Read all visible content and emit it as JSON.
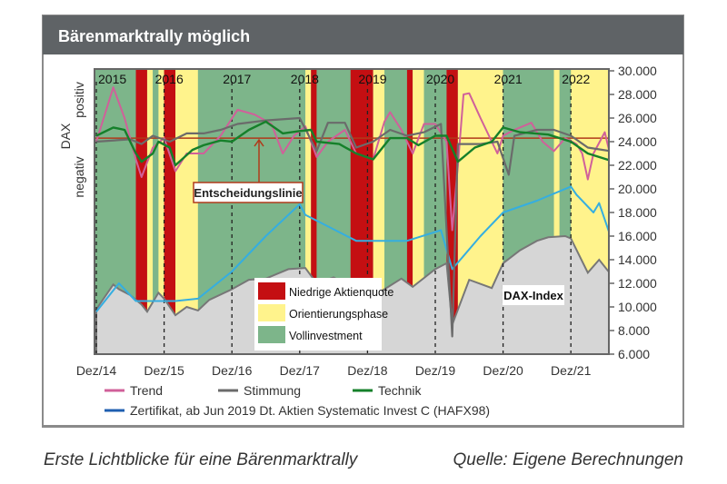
{
  "header": {
    "title": "Bärenmarktrally möglich"
  },
  "caption": {
    "left": "Erste Lichtblicke für eine Bärenmarktrally",
    "right": "Quelle: Eigene Berechnungen"
  },
  "chart_data": {
    "type": "line",
    "title": "Bärenmarktrally möglich",
    "ylabel": [
      "DAX",
      "negativ",
      "positiv"
    ],
    "ylim": [
      6000,
      30000
    ],
    "y_ticks": [
      "30.000",
      "28.000",
      "26.000",
      "24.000",
      "22.000",
      "20.000",
      "18.000",
      "16.000",
      "14.000",
      "12.000",
      "10.000",
      "8.000",
      "6.000"
    ],
    "x_ticks": [
      "Dez/14",
      "Dez/15",
      "Dez/16",
      "Dez/17",
      "Dez/18",
      "Dez/19",
      "Dez/20",
      "Dez/21"
    ],
    "year_labels": [
      "2015",
      "2016",
      "2017",
      "2018",
      "2019",
      "2020",
      "2021",
      "2022"
    ],
    "decision_line": {
      "label": "Entscheidungslinie",
      "value": 24300
    },
    "dax_label": "DAX-Index",
    "colors": {
      "red": "#c40f12",
      "yellow": "#fff38c",
      "green": "#7db58a",
      "dax_fill": "#d6d6d6",
      "trend": "#d0609a",
      "stimmung": "#6b6b6b",
      "technik": "#15802a",
      "zertifikat": "#35aee0",
      "zertifikat_legend": "#1f5fb0",
      "decision": "#b03a1a",
      "header": "#5f6366"
    },
    "regime_legend": [
      {
        "key": "red",
        "label": "Niedrige Aktienquote"
      },
      {
        "key": "yellow",
        "label": "Orientierungsphase"
      },
      {
        "key": "green",
        "label": "Vollinvestment"
      }
    ],
    "regimes": [
      [
        "2014-12",
        "2015-07",
        "green"
      ],
      [
        "2015-07",
        "2015-09",
        "red"
      ],
      [
        "2015-09",
        "2015-10",
        "yellow"
      ],
      [
        "2015-10",
        "2015-11",
        "green"
      ],
      [
        "2015-11",
        "2015-12",
        "yellow"
      ],
      [
        "2015-12",
        "2016-02",
        "red"
      ],
      [
        "2016-02",
        "2016-06",
        "yellow"
      ],
      [
        "2016-06",
        "2018-01",
        "green"
      ],
      [
        "2018-01",
        "2018-02",
        "yellow"
      ],
      [
        "2018-02",
        "2018-03",
        "red"
      ],
      [
        "2018-03",
        "2018-09",
        "green"
      ],
      [
        "2018-09",
        "2019-01",
        "red"
      ],
      [
        "2019-01",
        "2019-03",
        "yellow"
      ],
      [
        "2019-03",
        "2019-07",
        "green"
      ],
      [
        "2019-07",
        "2019-08",
        "red"
      ],
      [
        "2019-08",
        "2019-10",
        "yellow"
      ],
      [
        "2019-10",
        "2020-02",
        "green"
      ],
      [
        "2020-02",
        "2020-04",
        "red"
      ],
      [
        "2020-04",
        "2020-12",
        "yellow"
      ],
      [
        "2020-12",
        "2021-09",
        "green"
      ],
      [
        "2021-09",
        "2021-10",
        "yellow"
      ],
      [
        "2021-10",
        "2021-12",
        "green"
      ],
      [
        "2021-12",
        "2022-07",
        "yellow"
      ]
    ],
    "series": [
      {
        "name": "DAX-Index",
        "key": "dax",
        "points": [
          [
            "2014-12",
            9800
          ],
          [
            "2015-03",
            11900
          ],
          [
            "2015-04",
            11500
          ],
          [
            "2015-06",
            11000
          ],
          [
            "2015-08",
            10200
          ],
          [
            "2015-09",
            9600
          ],
          [
            "2015-11",
            11200
          ],
          [
            "2015-12",
            10700
          ],
          [
            "2016-02",
            9300
          ],
          [
            "2016-04",
            10000
          ],
          [
            "2016-06",
            9700
          ],
          [
            "2016-08",
            10600
          ],
          [
            "2016-12",
            11500
          ],
          [
            "2017-03",
            12300
          ],
          [
            "2017-06",
            12400
          ],
          [
            "2017-10",
            13200
          ],
          [
            "2018-01",
            13300
          ],
          [
            "2018-03",
            12000
          ],
          [
            "2018-06",
            12500
          ],
          [
            "2018-10",
            11400
          ],
          [
            "2018-12",
            10600
          ],
          [
            "2019-03",
            11500
          ],
          [
            "2019-06",
            12400
          ],
          [
            "2019-08",
            11700
          ],
          [
            "2019-12",
            13200
          ],
          [
            "2020-02",
            13700
          ],
          [
            "2020-03",
            8500
          ],
          [
            "2020-06",
            12300
          ],
          [
            "2020-10",
            11600
          ],
          [
            "2020-12",
            13700
          ],
          [
            "2021-03",
            14800
          ],
          [
            "2021-06",
            15600
          ],
          [
            "2021-08",
            15900
          ],
          [
            "2021-11",
            16000
          ],
          [
            "2021-12",
            15800
          ],
          [
            "2022-03",
            12900
          ],
          [
            "2022-05",
            14000
          ],
          [
            "2022-07",
            12800
          ]
        ]
      },
      {
        "name": "Zertifikat, ab Jun 2019 Dt. Aktien Systematic Invest C (HAFX98)",
        "key": "zertifikat",
        "points": [
          [
            "2014-12",
            9600
          ],
          [
            "2015-04",
            12000
          ],
          [
            "2015-07",
            10500
          ],
          [
            "2016-02",
            10500
          ],
          [
            "2016-06",
            10700
          ],
          [
            "2016-12",
            13000
          ],
          [
            "2017-06",
            16000
          ],
          [
            "2017-12",
            18700
          ],
          [
            "2018-01",
            17800
          ],
          [
            "2018-10",
            15600
          ],
          [
            "2019-07",
            15600
          ],
          [
            "2020-01",
            16500
          ],
          [
            "2020-03",
            13200
          ],
          [
            "2020-08",
            16000
          ],
          [
            "2020-12",
            18000
          ],
          [
            "2021-06",
            19000
          ],
          [
            "2021-12",
            20200
          ],
          [
            "2022-01",
            19500
          ],
          [
            "2022-04",
            18000
          ],
          [
            "2022-05",
            18800
          ],
          [
            "2022-07",
            16000
          ]
        ]
      },
      {
        "name": "Trend",
        "key": "trend",
        "points": [
          [
            "2014-12",
            24000
          ],
          [
            "2015-03",
            28600
          ],
          [
            "2015-05",
            26000
          ],
          [
            "2015-07",
            22500
          ],
          [
            "2015-08",
            21000
          ],
          [
            "2015-10",
            23500
          ],
          [
            "2015-12",
            24300
          ],
          [
            "2016-02",
            21500
          ],
          [
            "2016-04",
            23000
          ],
          [
            "2016-07",
            23000
          ],
          [
            "2016-10",
            24500
          ],
          [
            "2017-01",
            26700
          ],
          [
            "2017-04",
            26300
          ],
          [
            "2017-07",
            25500
          ],
          [
            "2017-09",
            23000
          ],
          [
            "2017-11",
            24500
          ],
          [
            "2018-01",
            25300
          ],
          [
            "2018-03",
            22700
          ],
          [
            "2018-05",
            24000
          ],
          [
            "2018-08",
            25000
          ],
          [
            "2018-10",
            23000
          ],
          [
            "2019-01",
            22500
          ],
          [
            "2019-03",
            25700
          ],
          [
            "2019-04",
            26500
          ],
          [
            "2019-06",
            25000
          ],
          [
            "2019-08",
            23000
          ],
          [
            "2019-10",
            25500
          ],
          [
            "2019-12",
            25500
          ],
          [
            "2020-02",
            24000
          ],
          [
            "2020-03",
            16500
          ],
          [
            "2020-04",
            22000
          ],
          [
            "2020-05",
            28000
          ],
          [
            "2020-06",
            28100
          ],
          [
            "2020-08",
            26000
          ],
          [
            "2020-10",
            24000
          ],
          [
            "2020-11",
            23000
          ],
          [
            "2020-12",
            24500
          ],
          [
            "2021-02",
            25000
          ],
          [
            "2021-05",
            25600
          ],
          [
            "2021-07",
            24000
          ],
          [
            "2021-09",
            23200
          ],
          [
            "2021-11",
            24300
          ],
          [
            "2022-01",
            23800
          ],
          [
            "2022-02",
            23000
          ],
          [
            "2022-03",
            20800
          ],
          [
            "2022-04",
            23000
          ],
          [
            "2022-06",
            24800
          ],
          [
            "2022-07",
            22800
          ]
        ]
      },
      {
        "name": "Stimmung",
        "key": "stimmung",
        "points": [
          [
            "2014-12",
            24000
          ],
          [
            "2015-06",
            24200
          ],
          [
            "2015-08",
            23800
          ],
          [
            "2015-10",
            24500
          ],
          [
            "2016-01",
            24000
          ],
          [
            "2016-04",
            24700
          ],
          [
            "2016-07",
            24700
          ],
          [
            "2016-10",
            25000
          ],
          [
            "2017-01",
            25500
          ],
          [
            "2017-06",
            25800
          ],
          [
            "2017-12",
            26000
          ],
          [
            "2018-03",
            23200
          ],
          [
            "2018-05",
            25600
          ],
          [
            "2018-08",
            25600
          ],
          [
            "2018-10",
            23500
          ],
          [
            "2019-01",
            24000
          ],
          [
            "2019-04",
            25000
          ],
          [
            "2019-07",
            24500
          ],
          [
            "2019-10",
            24800
          ],
          [
            "2020-01",
            25500
          ],
          [
            "2020-03",
            7500
          ],
          [
            "2020-04",
            23800
          ],
          [
            "2020-08",
            23800
          ],
          [
            "2020-11",
            24000
          ],
          [
            "2021-01",
            21200
          ],
          [
            "2021-02",
            24500
          ],
          [
            "2021-06",
            25000
          ],
          [
            "2021-09",
            25000
          ],
          [
            "2021-12",
            24500
          ],
          [
            "2022-03",
            23500
          ],
          [
            "2022-07",
            23200
          ]
        ]
      },
      {
        "name": "Technik",
        "key": "technik",
        "points": [
          [
            "2014-12",
            24500
          ],
          [
            "2015-03",
            25200
          ],
          [
            "2015-05",
            25000
          ],
          [
            "2015-07",
            23000
          ],
          [
            "2015-08",
            22300
          ],
          [
            "2015-10",
            23000
          ],
          [
            "2015-11",
            24000
          ],
          [
            "2016-01",
            23500
          ],
          [
            "2016-02",
            22000
          ],
          [
            "2016-05",
            23300
          ],
          [
            "2016-07",
            23700
          ],
          [
            "2016-10",
            24100
          ],
          [
            "2016-12",
            24000
          ],
          [
            "2017-03",
            25000
          ],
          [
            "2017-06",
            25700
          ],
          [
            "2017-09",
            24700
          ],
          [
            "2017-12",
            24900
          ],
          [
            "2018-02",
            25000
          ],
          [
            "2018-03",
            24000
          ],
          [
            "2018-07",
            23800
          ],
          [
            "2018-10",
            23000
          ],
          [
            "2019-01",
            22500
          ],
          [
            "2019-04",
            24300
          ],
          [
            "2019-07",
            24300
          ],
          [
            "2019-09",
            23700
          ],
          [
            "2019-12",
            24500
          ],
          [
            "2020-02",
            24500
          ],
          [
            "2020-04",
            22300
          ],
          [
            "2020-07",
            23500
          ],
          [
            "2020-10",
            24000
          ],
          [
            "2020-12",
            25200
          ],
          [
            "2021-03",
            24800
          ],
          [
            "2021-08",
            24600
          ],
          [
            "2021-12",
            24000
          ],
          [
            "2022-03",
            23000
          ],
          [
            "2022-07",
            22400
          ]
        ]
      }
    ]
  }
}
